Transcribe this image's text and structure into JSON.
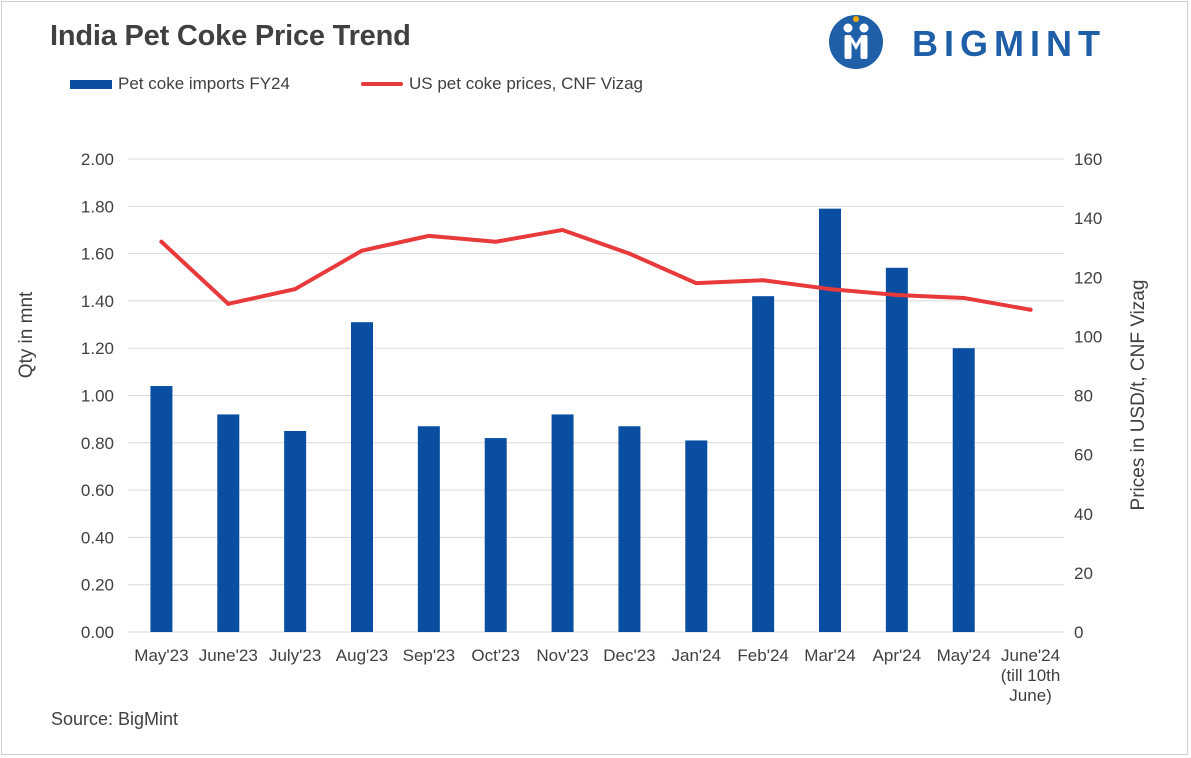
{
  "title": "India Pet Coke Price Trend",
  "logo": {
    "text": "BIGMINT",
    "color": "#1f5fa8"
  },
  "source": "Source: BigMint",
  "colors": {
    "bar": "#0a4ea2",
    "line": "#e8393b",
    "grid": "#d9d9d9",
    "text": "#404040"
  },
  "chart_data": {
    "type": "bar",
    "categories": [
      [
        "May'23"
      ],
      [
        "June'23"
      ],
      [
        "July'23"
      ],
      [
        "Aug'23"
      ],
      [
        "Sep'23"
      ],
      [
        "Oct'23"
      ],
      [
        "Nov'23"
      ],
      [
        "Dec'23"
      ],
      [
        "Jan'24"
      ],
      [
        "Feb'24"
      ],
      [
        "Mar'24"
      ],
      [
        "Apr'24"
      ],
      [
        "May'24"
      ],
      [
        "June'24",
        "(till 10th",
        "June)"
      ]
    ],
    "series": [
      {
        "name": "Pet coke imports FY24",
        "type": "bar",
        "axis": "left",
        "values": [
          1.04,
          0.92,
          0.85,
          1.31,
          0.87,
          0.82,
          0.92,
          0.87,
          0.81,
          1.42,
          1.79,
          1.54,
          1.2,
          null
        ]
      },
      {
        "name": "US pet coke prices, CNF Vizag",
        "type": "line",
        "axis": "right",
        "values": [
          132,
          111,
          116,
          129,
          134,
          132,
          136,
          128,
          118,
          119,
          116,
          114,
          113,
          109
        ]
      }
    ],
    "ylabel": "Qty in mnt",
    "ylabel_right": "Prices in USD/t, CNF Vizag",
    "ylim": [
      0,
      2.0
    ],
    "ylim_right": [
      0,
      160
    ],
    "yticks": [
      "0.00",
      "0.20",
      "0.40",
      "0.60",
      "0.80",
      "1.00",
      "1.20",
      "1.40",
      "1.60",
      "1.80",
      "2.00"
    ],
    "yticks_right": [
      "0",
      "20",
      "40",
      "60",
      "80",
      "100",
      "120",
      "140",
      "160"
    ],
    "grid": true,
    "legend_position": "top-left"
  }
}
